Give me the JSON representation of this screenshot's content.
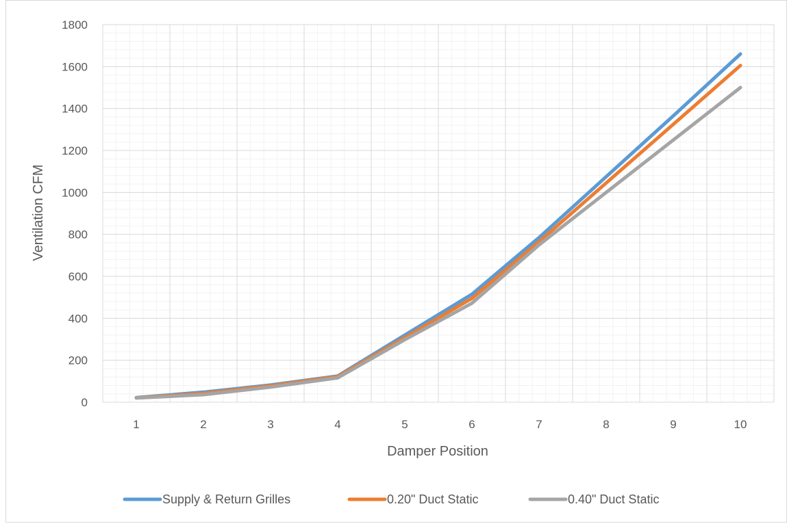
{
  "chart_data": {
    "type": "line",
    "title": "",
    "xlabel": "Damper Position",
    "ylabel": "Ventilation CFM",
    "x": [
      1,
      2,
      3,
      4,
      5,
      6,
      7,
      8,
      9,
      10
    ],
    "ylim": [
      0,
      1800
    ],
    "yticks": [
      0,
      200,
      400,
      600,
      800,
      1000,
      1200,
      1400,
      1600,
      1800
    ],
    "grid": true,
    "legend_position": "bottom",
    "series": [
      {
        "name": "Supply & Return Grilles",
        "color": "#5B9BD5",
        "values": [
          22,
          48,
          82,
          125,
          320,
          515,
          785,
          1075,
          1365,
          1660
        ]
      },
      {
        "name": "0.20\" Duct Static",
        "color": "#ED7D31",
        "values": [
          21,
          42,
          78,
          122,
          308,
          495,
          765,
          1045,
          1325,
          1605
        ]
      },
      {
        "name": "0.40\" Duct Static",
        "color": "#A5A5A5",
        "values": [
          20,
          36,
          72,
          116,
          298,
          472,
          750,
          1000,
          1250,
          1500
        ]
      }
    ]
  }
}
